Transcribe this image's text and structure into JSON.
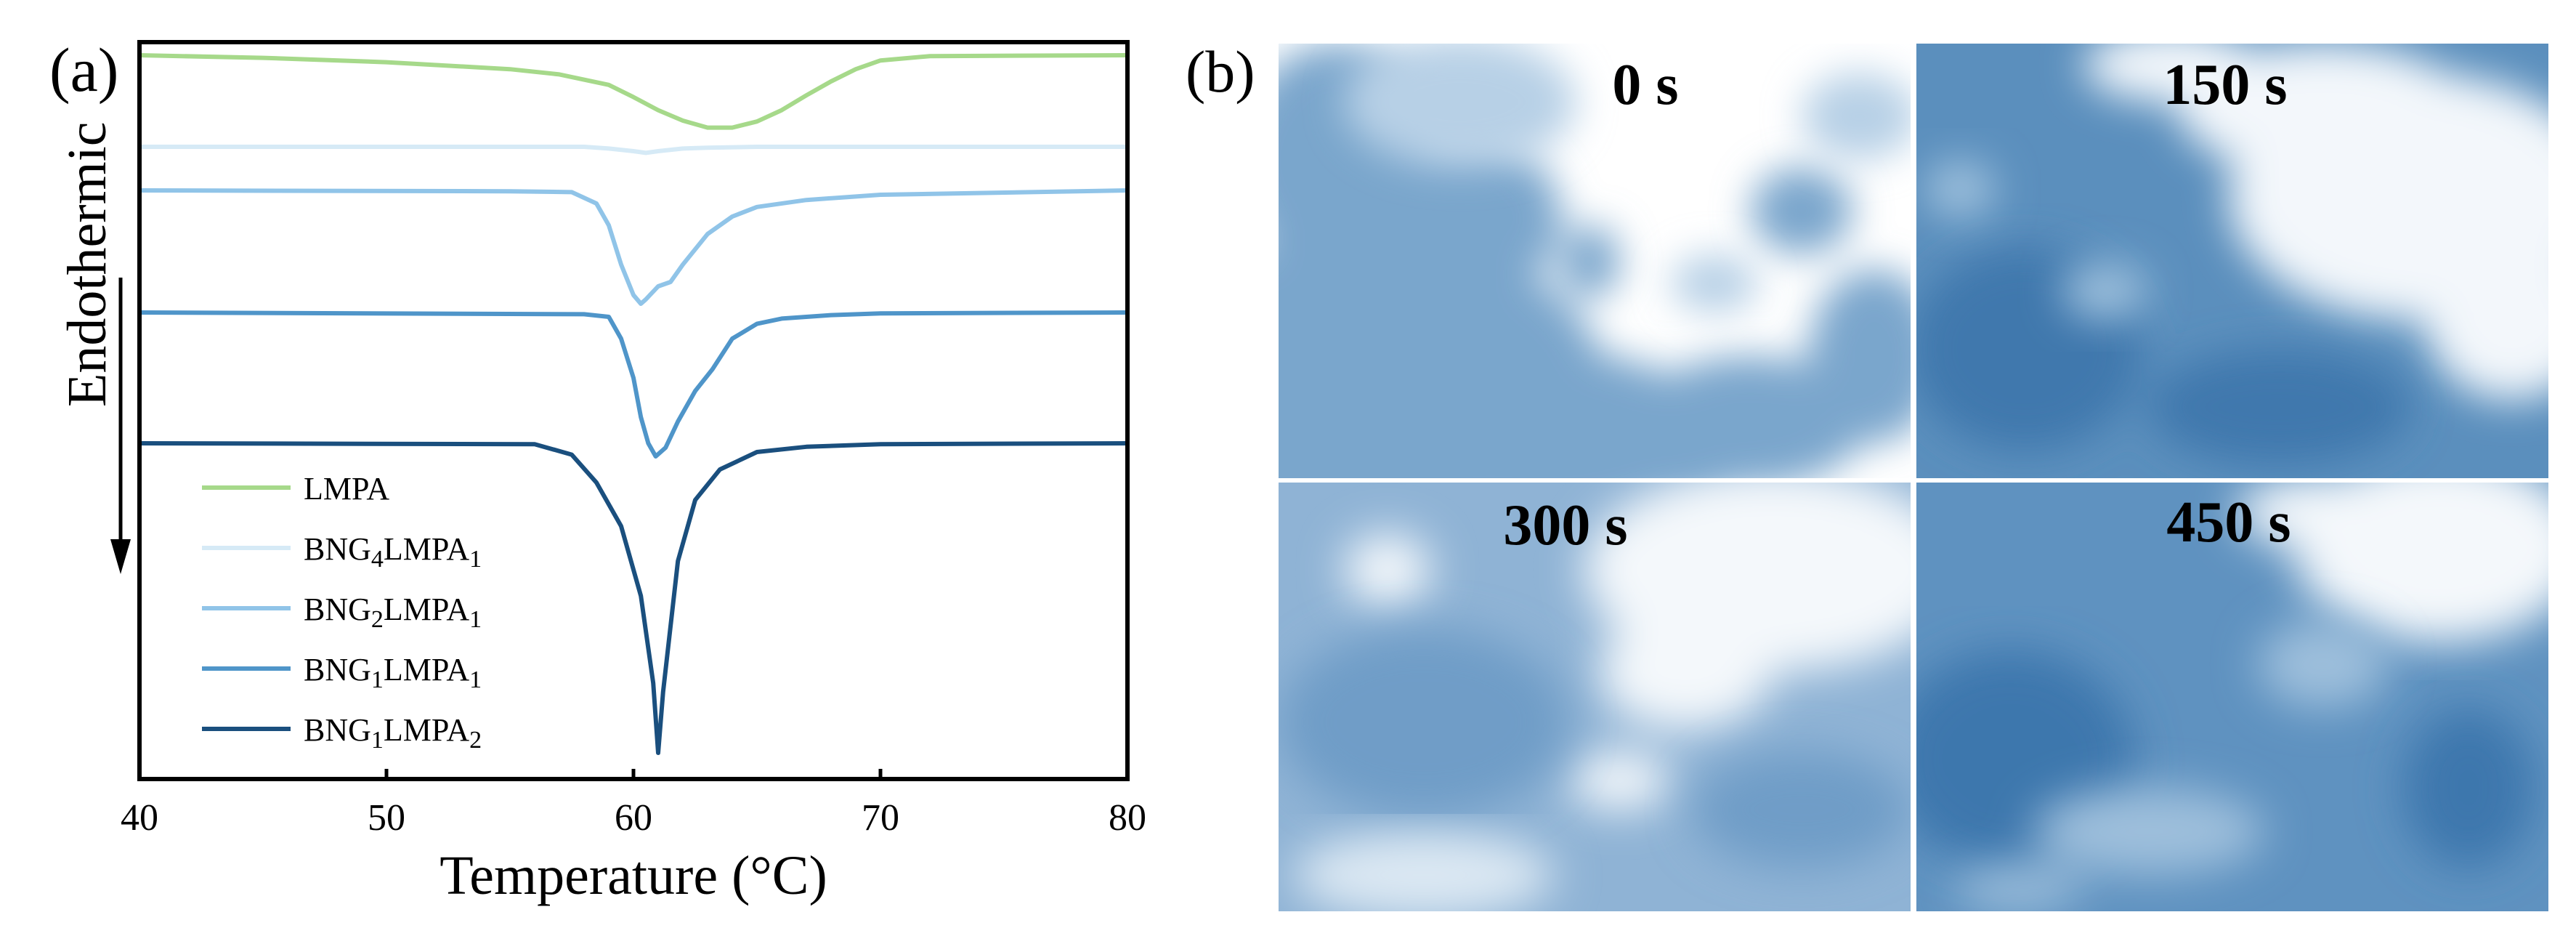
{
  "panel_a_label": "(a)",
  "panel_b_label": "(b)",
  "chart_data": {
    "type": "line",
    "title": "",
    "xlabel": "Temperature (°C)",
    "ylabel": "Endothermic",
    "xlim": [
      40,
      80
    ],
    "x_ticks": [
      40,
      50,
      60,
      70,
      80
    ],
    "y_ticks_shown": false,
    "legend_position": "bottom-left",
    "series": [
      {
        "name": "LMPA",
        "base": "LMPA",
        "sub1": "",
        "mid": "",
        "sub2": "",
        "color": "#a6d98a",
        "baseline": 0.0,
        "x": [
          40,
          45,
          50,
          55,
          57,
          59,
          60,
          61,
          62,
          63,
          64,
          65,
          66,
          67,
          68,
          69,
          70,
          72,
          80
        ],
        "y": [
          0.0,
          -0.3,
          -0.8,
          -1.6,
          -2.2,
          -3.4,
          -4.8,
          -6.3,
          -7.5,
          -8.3,
          -8.3,
          -7.6,
          -6.3,
          -4.6,
          -3.0,
          -1.6,
          -0.6,
          -0.1,
          0.0
        ]
      },
      {
        "name": "BNG4LMPA1",
        "base": "BNG",
        "sub1": "4",
        "mid": "LMPA",
        "sub2": "1",
        "color": "#d6eaf6",
        "baseline": -10.5,
        "x": [
          40,
          58,
          59,
          60,
          60.5,
          61,
          62,
          63,
          65,
          80
        ],
        "y": [
          -10.5,
          -10.5,
          -10.7,
          -11.0,
          -11.2,
          -11.0,
          -10.7,
          -10.6,
          -10.5,
          -10.5
        ]
      },
      {
        "name": "BNG2LMPA1",
        "base": "BNG",
        "sub1": "2",
        "mid": "LMPA",
        "sub2": "1",
        "color": "#90c4e8",
        "baseline": -15.5,
        "x": [
          40,
          55,
          57.5,
          58.5,
          59,
          59.5,
          60,
          60.3,
          60.5,
          61,
          61.5,
          62,
          63,
          64,
          65,
          67,
          70,
          80
        ],
        "y": [
          -15.5,
          -15.6,
          -15.7,
          -17.0,
          -19.5,
          -24.0,
          -27.5,
          -28.5,
          -28.0,
          -26.5,
          -26.0,
          -24.0,
          -20.5,
          -18.5,
          -17.4,
          -16.6,
          -16.0,
          -15.5
        ]
      },
      {
        "name": "BNG1LMPA1",
        "base": "BNG",
        "sub1": "1",
        "mid": "LMPA",
        "sub2": "1",
        "color": "#4f95c9",
        "baseline": -29.5,
        "x": [
          40,
          58,
          59,
          59.5,
          60,
          60.3,
          60.6,
          60.9,
          61.3,
          61.8,
          62.5,
          63.2,
          64,
          65,
          66,
          68,
          70,
          80
        ],
        "y": [
          -29.5,
          -29.7,
          -30.0,
          -32.5,
          -37.0,
          -41.5,
          -44.5,
          -46.0,
          -45.0,
          -42.0,
          -38.5,
          -36.0,
          -32.5,
          -30.8,
          -30.2,
          -29.8,
          -29.6,
          -29.5
        ]
      },
      {
        "name": "BNG1LMPA2",
        "base": "BNG",
        "sub1": "1",
        "mid": "LMPA",
        "sub2": "2",
        "color": "#1a4f7e",
        "baseline": -44.5,
        "x": [
          40,
          56,
          57.5,
          58.5,
          59.5,
          60.3,
          60.8,
          61.0,
          61.2,
          61.8,
          62.5,
          63.5,
          65,
          67,
          70,
          80
        ],
        "y": [
          -44.5,
          -44.6,
          -45.8,
          -49.0,
          -54.0,
          -62.0,
          -72.0,
          -80.0,
          -73.0,
          -58.0,
          -51.0,
          -47.5,
          -45.5,
          -44.9,
          -44.6,
          -44.5
        ]
      }
    ],
    "ylim": [
      -83,
      1.5
    ]
  },
  "panel_b": {
    "tiles": [
      {
        "label": "0 s"
      },
      {
        "label": "150 s"
      },
      {
        "label": "300 s"
      },
      {
        "label": "450 s"
      }
    ]
  }
}
